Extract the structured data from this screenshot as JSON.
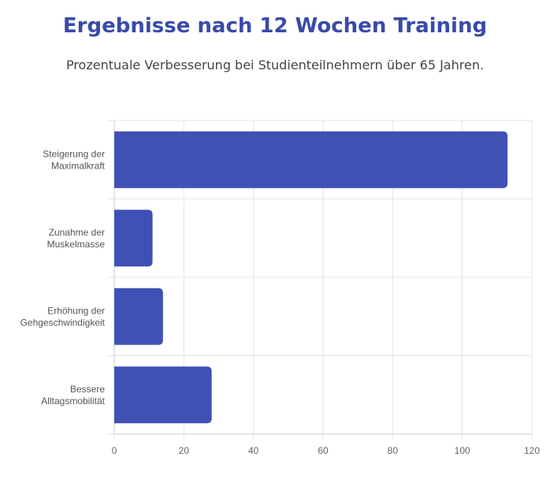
{
  "header": {
    "title": "Ergebnisse nach 12 Wochen Training",
    "subtitle": "Prozentuale Verbesserung bei Studienteilnehmern über 65 Jahren."
  },
  "colors": {
    "bar": "#3f51b5",
    "title": "#3a4aa8",
    "grid": "#e5e5e5"
  },
  "chart_data": {
    "type": "bar",
    "orientation": "horizontal",
    "categories": [
      [
        "Steigerung der",
        "Maximalkraft"
      ],
      [
        "Zunahme der",
        "Muskelmasse"
      ],
      [
        "Erhöhung der",
        "Gehgeschwindigkeit"
      ],
      [
        "Bessere",
        "Alltagsmobilität"
      ]
    ],
    "values": [
      113,
      11,
      14,
      28
    ],
    "xlim": [
      0,
      120
    ],
    "xticks": [
      0,
      20,
      40,
      60,
      80,
      100,
      120
    ],
    "grid": true,
    "legend": "none"
  }
}
